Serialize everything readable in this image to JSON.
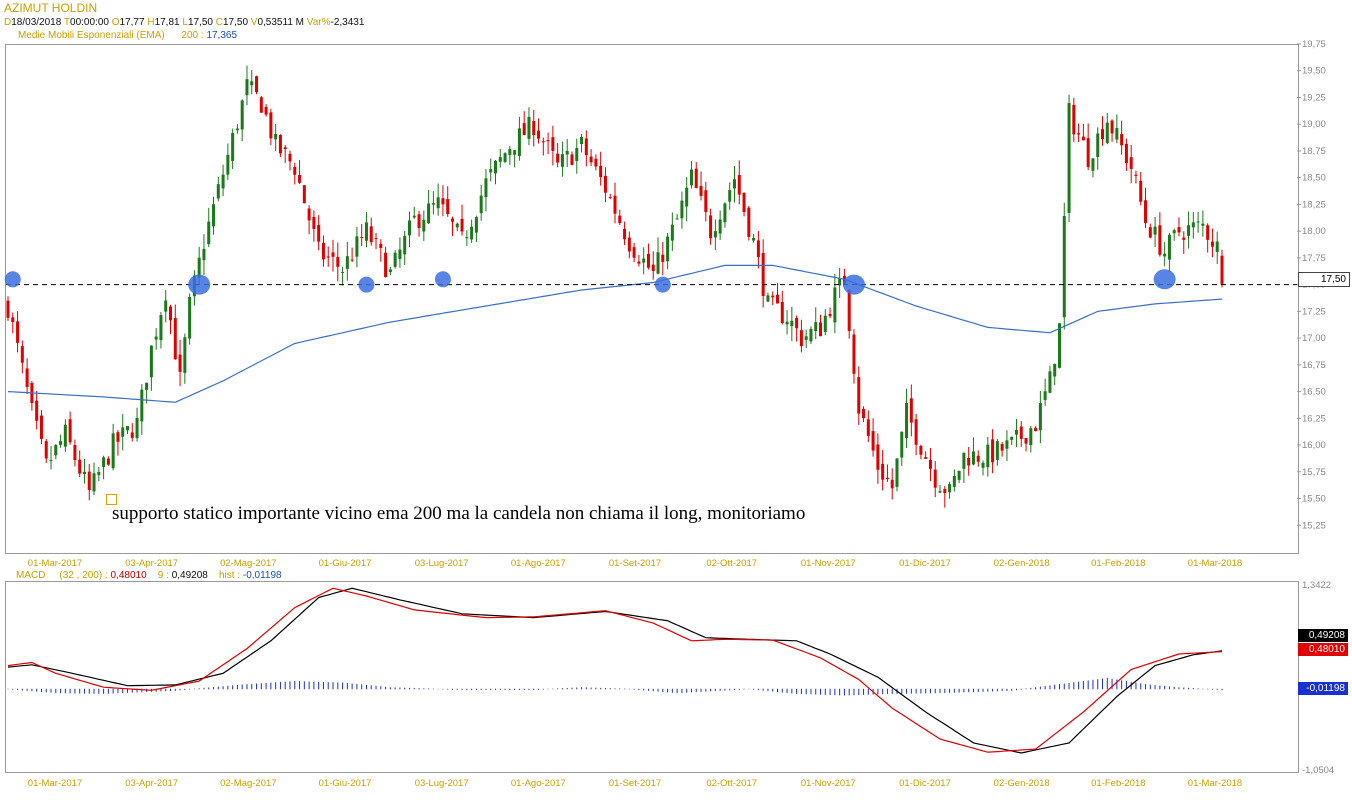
{
  "header": {
    "symbol": "AZIMUT HOLDIN",
    "date_key": "D",
    "date_val": "18/03/2018",
    "time_key": "T",
    "time_val": "00:00:00",
    "open_key": "O",
    "open_val": "17,77",
    "high_key": "H",
    "high_val": "17,81",
    "low_key": "L",
    "low_val": "17,50",
    "close_key": "C",
    "close_val": "17,50",
    "vol_key": "V",
    "vol_val": "0,53511 M",
    "var_key": "Var%",
    "var_val": "-2,3431",
    "ema_label": "Medie Mobili Esponenziali (EMA)",
    "ema_period": "200 :",
    "ema_value": "17,365"
  },
  "annotation": "supporto statico importante vicino ema 200 ma la candela non chiama il long, monitoriamo",
  "price_tag": "17,50",
  "macd_header": {
    "label": "MACD",
    "params": "(32 , 200) :",
    "macd_val": "0,48010",
    "signal_period": "9 :",
    "signal_val": "0,49208",
    "hist_label": "hist :",
    "hist_val": "-0,01198"
  },
  "macd_tags": {
    "signal": "0,49208",
    "macd": "0,48010",
    "hist": "-0,01198"
  },
  "colors": {
    "up": "#1a7a1a",
    "down": "#e00000",
    "ema": "#3a6fc8",
    "marker": "#3a6fe0",
    "support": "#000000",
    "label": "#c8a000"
  },
  "chart_data": [
    {
      "type": "candlestick",
      "title": "AZIMUT HOLDIN",
      "x_ticks": [
        "01-Mar-2017",
        "03-Apr-2017",
        "02-Mag-2017",
        "01-Giu-2017",
        "03-Lug-2017",
        "01-Ago-2017",
        "01-Set-2017",
        "02-Ott-2017",
        "01-Nov-2017",
        "01-Dic-2017",
        "02-Gen-2018",
        "01-Feb-2018",
        "01-Mar-2018"
      ],
      "y_ticks": [
        "19,75",
        "19,50",
        "19,25",
        "19,00",
        "18,75",
        "18,50",
        "18,25",
        "18,00",
        "17,75",
        "17,50",
        "17,25",
        "17,00",
        "16,75",
        "16,50",
        "16,25",
        "16,00",
        "15,75",
        "15,50",
        "15,25"
      ],
      "ylim": [
        15.0,
        19.75
      ],
      "support_level": 17.5,
      "close_path": [
        [
          0,
          17.3
        ],
        [
          5,
          16.3
        ],
        [
          8,
          15.8
        ],
        [
          12,
          16.1
        ],
        [
          17,
          15.55
        ],
        [
          22,
          16.0
        ],
        [
          27,
          16.2
        ],
        [
          30,
          16.9
        ],
        [
          33,
          17.45
        ],
        [
          36,
          16.6
        ],
        [
          38,
          17.3
        ],
        [
          41,
          17.9
        ],
        [
          46,
          18.7
        ],
        [
          50,
          19.35
        ],
        [
          53,
          19.2
        ],
        [
          56,
          18.8
        ],
        [
          60,
          18.6
        ],
        [
          65,
          17.8
        ],
        [
          70,
          17.65
        ],
        [
          75,
          18.0
        ],
        [
          80,
          17.6
        ],
        [
          85,
          18.1
        ],
        [
          90,
          18.25
        ],
        [
          95,
          17.9
        ],
        [
          100,
          18.45
        ],
        [
          105,
          18.8
        ],
        [
          110,
          19.0
        ],
        [
          115,
          18.6
        ],
        [
          120,
          18.8
        ],
        [
          125,
          18.4
        ],
        [
          130,
          17.9
        ],
        [
          135,
          17.6
        ],
        [
          140,
          18.1
        ],
        [
          143,
          18.5
        ],
        [
          147,
          18.0
        ],
        [
          152,
          18.5
        ],
        [
          156,
          17.9
        ],
        [
          159,
          17.3
        ],
        [
          163,
          17.2
        ],
        [
          166,
          17.0
        ],
        [
          170,
          17.1
        ],
        [
          173,
          17.4
        ],
        [
          175,
          17.55
        ],
        [
          178,
          16.35
        ],
        [
          182,
          15.8
        ],
        [
          185,
          15.6
        ],
        [
          188,
          16.3
        ],
        [
          191,
          16.0
        ],
        [
          194,
          15.7
        ],
        [
          197,
          15.55
        ],
        [
          200,
          15.9
        ],
        [
          205,
          15.9
        ],
        [
          210,
          16.0
        ],
        [
          215,
          16.2
        ],
        [
          218,
          16.6
        ],
        [
          220,
          17.1
        ],
        [
          222,
          19.1
        ],
        [
          226,
          18.7
        ],
        [
          230,
          19.05
        ],
        [
          235,
          18.6
        ],
        [
          238,
          18.1
        ],
        [
          242,
          17.8
        ],
        [
          245,
          18.0
        ],
        [
          250,
          18.05
        ],
        [
          253,
          17.85
        ],
        [
          254,
          17.5
        ]
      ],
      "ema200": [
        [
          0,
          16.5
        ],
        [
          20,
          16.45
        ],
        [
          35,
          16.4
        ],
        [
          45,
          16.6
        ],
        [
          60,
          16.95
        ],
        [
          80,
          17.15
        ],
        [
          100,
          17.3
        ],
        [
          120,
          17.45
        ],
        [
          135,
          17.52
        ],
        [
          150,
          17.68
        ],
        [
          160,
          17.68
        ],
        [
          175,
          17.55
        ],
        [
          190,
          17.3
        ],
        [
          205,
          17.1
        ],
        [
          218,
          17.05
        ],
        [
          228,
          17.25
        ],
        [
          240,
          17.32
        ],
        [
          254,
          17.365
        ]
      ],
      "touch_points": [
        [
          1,
          17.55
        ],
        [
          40,
          17.5
        ],
        [
          75,
          17.5
        ],
        [
          91,
          17.55
        ],
        [
          137,
          17.5
        ],
        [
          177,
          17.5
        ],
        [
          242,
          17.55
        ]
      ],
      "last": {
        "open": 17.77,
        "high": 17.81,
        "low": 17.5,
        "close": 17.5
      }
    },
    {
      "type": "line",
      "title": "MACD",
      "series": [
        {
          "name": "MACD",
          "points": [
            [
              0,
              0.3
            ],
            [
              5,
              0.34
            ],
            [
              10,
              0.2
            ],
            [
              20,
              0.02
            ],
            [
              30,
              -0.02
            ],
            [
              40,
              0.1
            ],
            [
              50,
              0.52
            ],
            [
              60,
              1.05
            ],
            [
              68,
              1.3
            ],
            [
              75,
              1.2
            ],
            [
              85,
              1.02
            ],
            [
              100,
              0.92
            ],
            [
              110,
              0.93
            ],
            [
              125,
              1.01
            ],
            [
              135,
              0.85
            ],
            [
              143,
              0.62
            ],
            [
              150,
              0.64
            ],
            [
              160,
              0.63
            ],
            [
              170,
              0.4
            ],
            [
              178,
              0.12
            ],
            [
              185,
              -0.25
            ],
            [
              195,
              -0.65
            ],
            [
              205,
              -0.82
            ],
            [
              215,
              -0.78
            ],
            [
              225,
              -0.3
            ],
            [
              235,
              0.25
            ],
            [
              245,
              0.45
            ],
            [
              254,
              0.48
            ]
          ]
        },
        {
          "name": "signal",
          "points": [
            [
              0,
              0.28
            ],
            [
              5,
              0.31
            ],
            [
              12,
              0.22
            ],
            [
              25,
              0.04
            ],
            [
              35,
              0.05
            ],
            [
              45,
              0.2
            ],
            [
              55,
              0.62
            ],
            [
              65,
              1.18
            ],
            [
              72,
              1.3
            ],
            [
              82,
              1.15
            ],
            [
              95,
              0.97
            ],
            [
              110,
              0.92
            ],
            [
              125,
              1.0
            ],
            [
              138,
              0.88
            ],
            [
              146,
              0.66
            ],
            [
              155,
              0.64
            ],
            [
              165,
              0.62
            ],
            [
              172,
              0.45
            ],
            [
              182,
              0.15
            ],
            [
              192,
              -0.3
            ],
            [
              202,
              -0.7
            ],
            [
              212,
              -0.83
            ],
            [
              222,
              -0.7
            ],
            [
              232,
              -0.1
            ],
            [
              240,
              0.3
            ],
            [
              248,
              0.44
            ],
            [
              254,
              0.49
            ]
          ]
        },
        {
          "name": "hist",
          "points": [
            [
              0,
              0.0
            ],
            [
              10,
              -0.05
            ],
            [
              20,
              -0.06
            ],
            [
              35,
              -0.02
            ],
            [
              50,
              0.06
            ],
            [
              60,
              0.1
            ],
            [
              70,
              0.08
            ],
            [
              80,
              0.02
            ],
            [
              95,
              -0.01
            ],
            [
              110,
              -0.01
            ],
            [
              120,
              0.02
            ],
            [
              130,
              0.0
            ],
            [
              140,
              -0.05
            ],
            [
              155,
              0.0
            ],
            [
              165,
              -0.06
            ],
            [
              175,
              -0.08
            ],
            [
              185,
              -0.06
            ],
            [
              195,
              -0.05
            ],
            [
              210,
              -0.02
            ],
            [
              220,
              0.06
            ],
            [
              230,
              0.14
            ],
            [
              238,
              0.06
            ],
            [
              245,
              0.02
            ],
            [
              254,
              -0.012
            ]
          ]
        }
      ],
      "y_ticks": [
        "1,3422",
        "-1,0504"
      ],
      "ylim": [
        -1.0504,
        1.3422
      ]
    }
  ]
}
